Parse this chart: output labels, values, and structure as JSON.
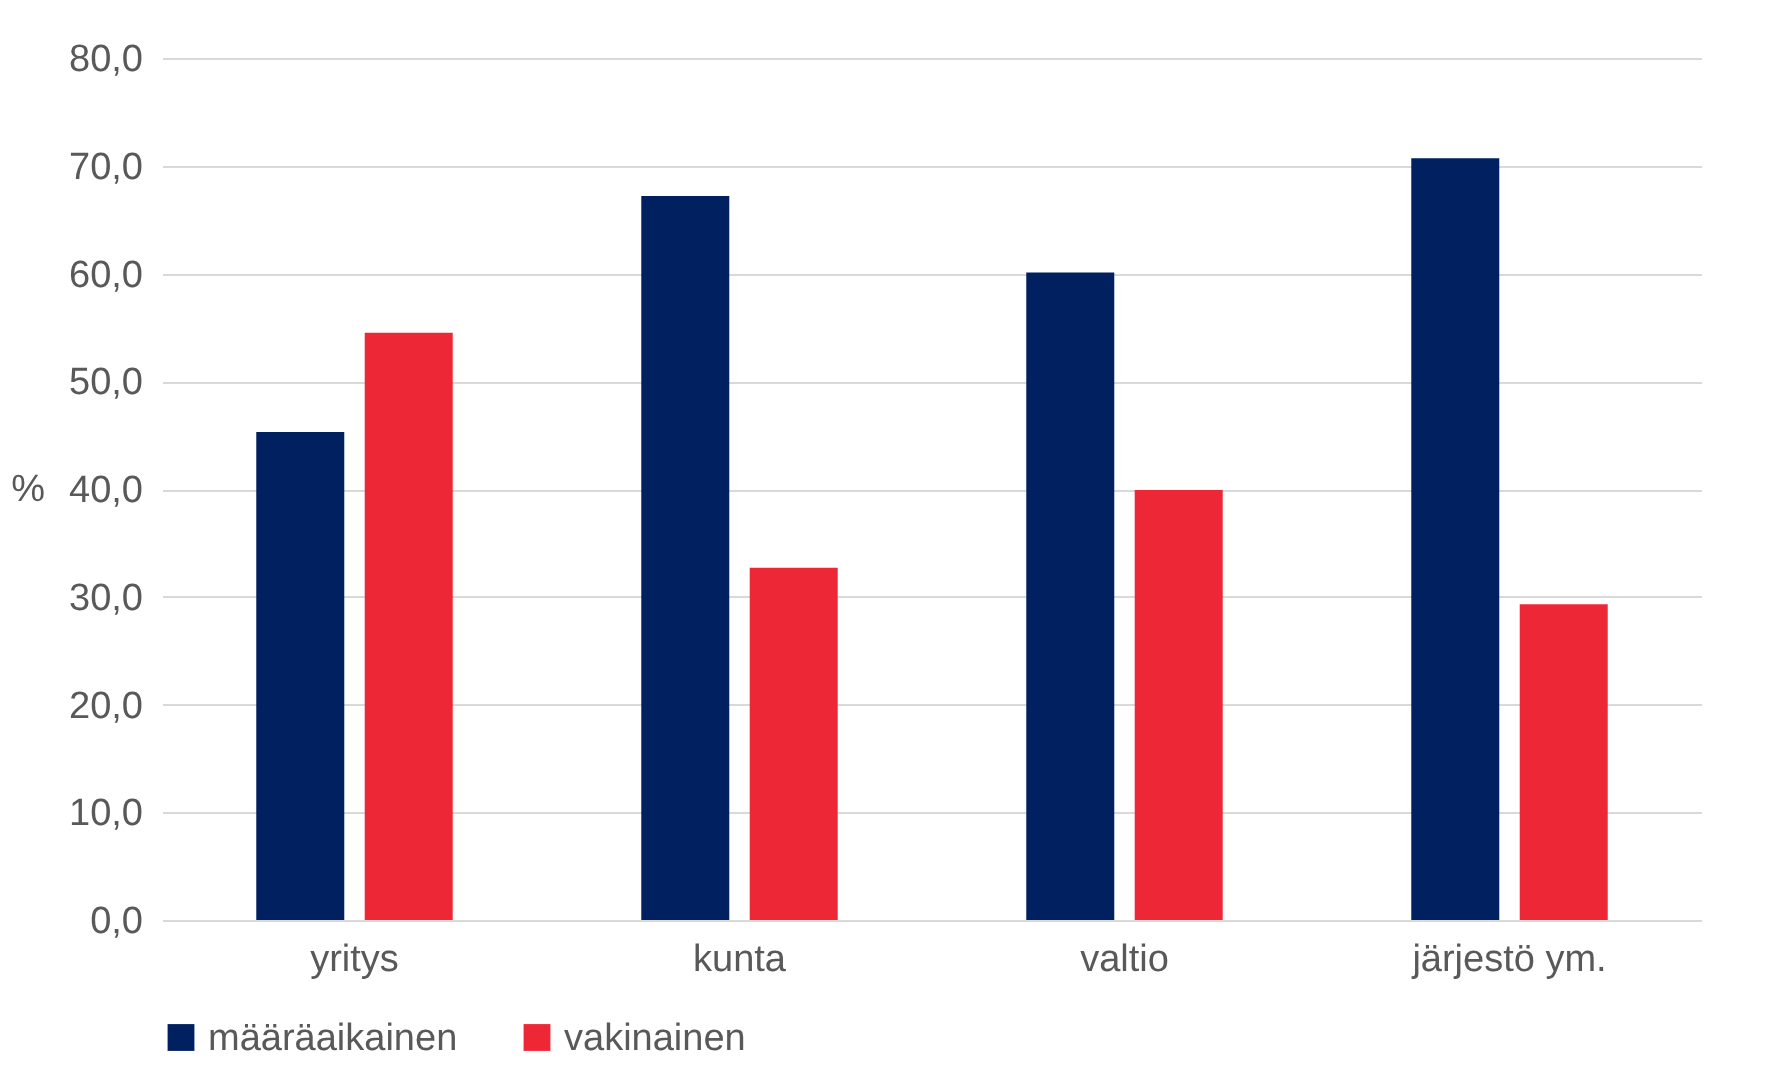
{
  "chart_data": {
    "type": "bar",
    "ylabel": "%",
    "categories": [
      "yritys",
      "kunta",
      "valtio",
      "järjestö ym."
    ],
    "series": [
      {
        "name": "määräaikainen",
        "color": "#002060",
        "values": [
          45.3,
          67.2,
          60.1,
          70.7
        ]
      },
      {
        "name": "vakinainen",
        "color": "#ee2737",
        "values": [
          54.5,
          32.7,
          39.9,
          29.3
        ]
      }
    ],
    "ylim": [
      0,
      80
    ],
    "yticks": [
      {
        "value": 0,
        "label": "0,0"
      },
      {
        "value": 10,
        "label": "10,0"
      },
      {
        "value": 20,
        "label": "20,0"
      },
      {
        "value": 30,
        "label": "30,0"
      },
      {
        "value": 40,
        "label": "40,0"
      },
      {
        "value": 50,
        "label": "50,0"
      },
      {
        "value": 60,
        "label": "60,0"
      },
      {
        "value": 70,
        "label": "70,0"
      },
      {
        "value": 80,
        "label": "80,0"
      }
    ],
    "grid": "y",
    "legend": "bottom"
  }
}
